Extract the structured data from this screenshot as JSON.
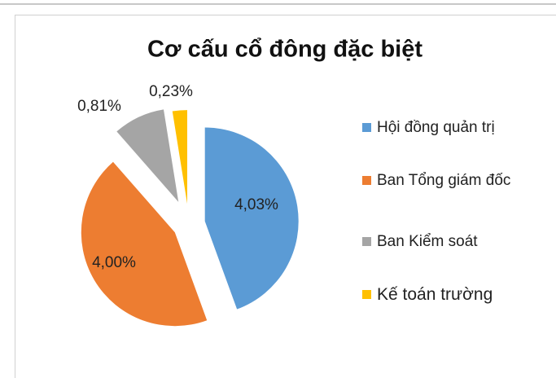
{
  "chart_data": {
    "type": "pie",
    "title": "Cơ cấu cổ đông đặc biệt",
    "categories": [
      "Hội đồng quản trị",
      "Ban Tổng giám đốc",
      "Ban Kiểm soát",
      "Kế toán trường"
    ],
    "values": [
      4.03,
      4.0,
      0.81,
      0.23
    ],
    "value_labels": [
      "4,03%",
      "4,00%",
      "0,81%",
      "0,23%"
    ],
    "colors": [
      "#5b9bd5",
      "#ed7d31",
      "#a5a5a5",
      "#ffc000"
    ],
    "legend": "right"
  }
}
